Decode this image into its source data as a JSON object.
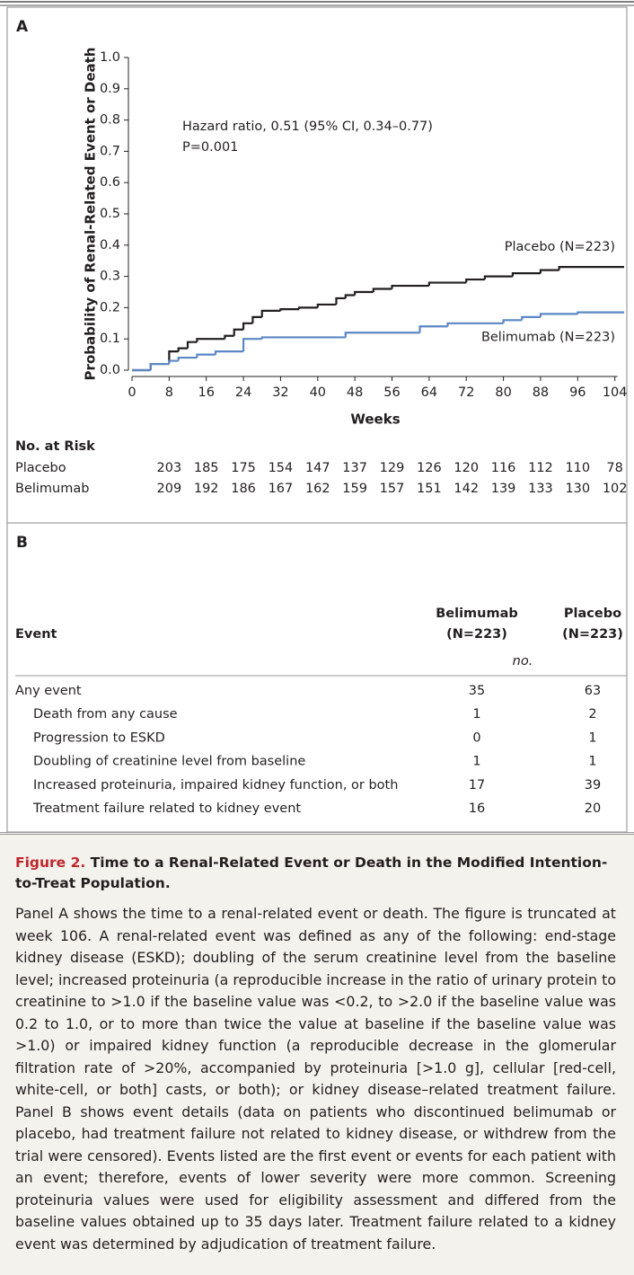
{
  "chart_data": {
    "type": "line",
    "step": true,
    "panel_label": "A",
    "ylabel": "Probability of Renal-Related Event or Death",
    "xlabel": "Weeks",
    "annotations": [
      "Hazard ratio, 0.51 (95% CI, 0.34–0.77)",
      "P=0.001"
    ],
    "xlim": [
      0,
      106
    ],
    "ylim": [
      0,
      1
    ],
    "xticks": [
      0,
      8,
      16,
      24,
      32,
      40,
      48,
      56,
      64,
      72,
      80,
      88,
      96,
      104
    ],
    "yticks": [
      {
        "value": 0,
        "label": "0.0"
      },
      0.1,
      0.2,
      0.3,
      0.4,
      0.5,
      0.6,
      0.7,
      0.8,
      0.9,
      {
        "value": 1,
        "label": "1.0"
      }
    ],
    "series": [
      {
        "name": "Placebo (N=223)",
        "color": "#231f20",
        "x": [
          0,
          4,
          8,
          10,
          12,
          14,
          20,
          22,
          24,
          26,
          28,
          32,
          36,
          40,
          44,
          46,
          48,
          52,
          56,
          64,
          72,
          76,
          82,
          88,
          92,
          106
        ],
        "values": [
          0,
          0.02,
          0.06,
          0.07,
          0.09,
          0.1,
          0.11,
          0.13,
          0.15,
          0.17,
          0.19,
          0.195,
          0.2,
          0.21,
          0.23,
          0.24,
          0.25,
          0.26,
          0.27,
          0.28,
          0.29,
          0.3,
          0.31,
          0.32,
          0.33,
          0.33
        ]
      },
      {
        "name": "Belimumab (N=223)",
        "color": "#5b87c5",
        "x": [
          0,
          4,
          8,
          10,
          14,
          18,
          24,
          28,
          46,
          62,
          68,
          80,
          84,
          88,
          96,
          106
        ],
        "values": [
          0,
          0.02,
          0.03,
          0.04,
          0.05,
          0.06,
          0.1,
          0.105,
          0.12,
          0.14,
          0.15,
          0.16,
          0.17,
          0.18,
          0.185,
          0.185
        ]
      }
    ],
    "risk_table": {
      "title": "No. at Risk",
      "rows": [
        {
          "name": "Placebo",
          "values": [
            203,
            185,
            175,
            154,
            147,
            137,
            129,
            126,
            120,
            116,
            112,
            110,
            78
          ]
        },
        {
          "name": "Belimumab",
          "values": [
            209,
            192,
            186,
            167,
            162,
            159,
            157,
            151,
            142,
            139,
            133,
            130,
            102
          ]
        }
      ]
    }
  },
  "panel_b": {
    "label": "B",
    "event_header": "Event",
    "groups": [
      [
        "Belimumab",
        "(N=223)"
      ],
      [
        "Placebo",
        "(N=223)"
      ]
    ],
    "unit": "no.",
    "rows": [
      [
        "Any event",
        35,
        63
      ],
      [
        "Death from any cause",
        1,
        2
      ],
      [
        "Progression to ESKD",
        0,
        1
      ],
      [
        "Doubling of creatinine level from baseline",
        1,
        1
      ],
      [
        "Increased proteinuria, impaired kidney function, or both",
        17,
        39
      ],
      [
        "Treatment failure related to kidney event",
        16,
        20
      ]
    ]
  },
  "caption": {
    "figure": "Figure 2.",
    "title": "Time to a Renal-Related Event or Death in the Modified Intention-to-Treat Population.",
    "text": "Panel A shows the time to a renal-related event or death. The figure is truncated at week 106. A renal-related event was defined as any of the following: end-stage kidney disease (ESKD); doubling of the serum creatinine level from the baseline level; increased proteinuria (a reproducible increase in the ratio of urinary protein to creatinine to >1.0 if the baseline value was <0.2, to >2.0 if the baseline value was 0.2 to 1.0, or to more than twice the value at baseline if the baseline value was >1.0) or impaired kidney function (a reproducible decrease in the glomerular filtration rate of >20%, accompanied by proteinuria [>1.0 g], cellular [red-cell, white-cell, or both] casts, or both); or kidney disease–related treatment failure. Panel B shows event details (data on patients who discontinued belimumab or placebo, had treatment failure not related to kidney disease, or withdrew from the trial were censored). Events listed are the first event or events for each patient with an event; therefore, events of lower severity were more common. Screening proteinuria values were used for eligibility assessment and differed from the baseline values obtained up to 35 days later. Treatment failure related to a kidney event was determined by adjudication of treatment failure."
  }
}
